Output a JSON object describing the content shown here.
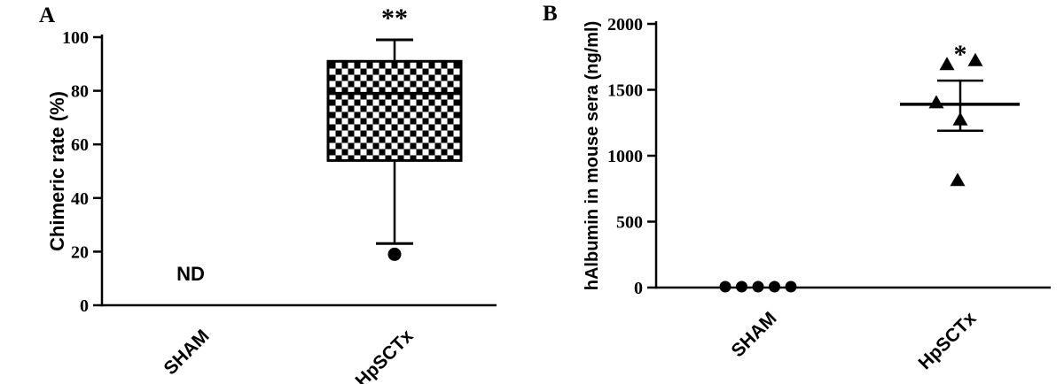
{
  "panels": [
    {
      "letter": "A"
    },
    {
      "letter": "B"
    }
  ],
  "colors": {
    "ink": "#000000",
    "background": "#ffffff"
  },
  "chart_data": [
    {
      "type": "box",
      "panel": "A",
      "title": "",
      "ylabel": "Chimeric rate (%)",
      "xlabel": "",
      "ylim": [
        0,
        100
      ],
      "yticks": [
        0,
        20,
        40,
        60,
        80,
        100
      ],
      "grid": false,
      "legend": false,
      "categories": [
        "SHAM",
        "HpSCTx"
      ],
      "groups": [
        {
          "category": "SHAM",
          "label": "ND",
          "box": null
        },
        {
          "category": "HpSCTx",
          "significance": "**",
          "box": {
            "whisker_low": 23,
            "q1": 54,
            "median": 79,
            "q3": 91,
            "whisker_high": 99,
            "outliers": [
              19
            ],
            "fill": "checkerboard"
          }
        }
      ]
    },
    {
      "type": "scatter",
      "panel": "B",
      "title": "",
      "ylabel": "hAlbumin in mouse sera (ng/ml)",
      "xlabel": "",
      "ylim": [
        0,
        2000
      ],
      "yticks": [
        0,
        500,
        1000,
        1500,
        2000
      ],
      "grid": false,
      "legend": false,
      "categories": [
        "SHAM",
        "HpSCTx"
      ],
      "groups": [
        {
          "category": "SHAM",
          "marker": "circle",
          "values": [
            0,
            0,
            0,
            0,
            0
          ]
        },
        {
          "category": "HpSCTx",
          "marker": "triangle",
          "values": [
            1720,
            1690,
            1400,
            1270,
            810
          ],
          "mean": 1390,
          "error_high": 1570,
          "error_low": 1190,
          "significance": "*"
        }
      ]
    }
  ]
}
